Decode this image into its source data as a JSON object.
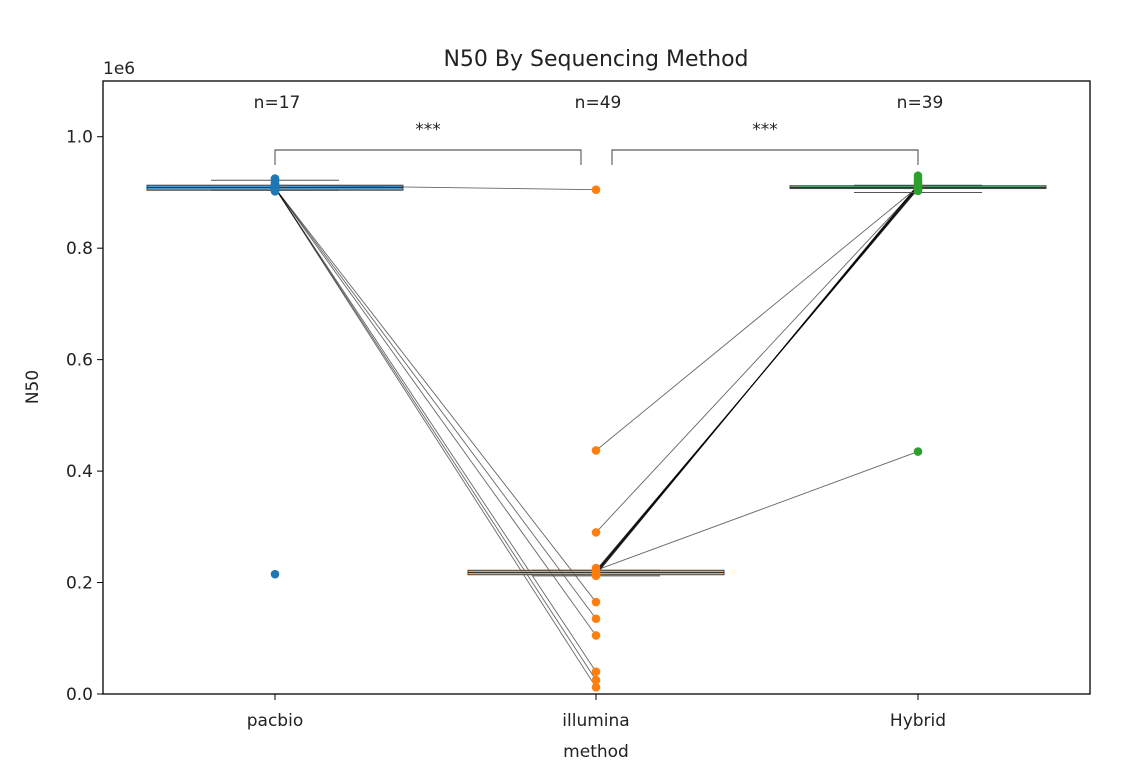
{
  "chart_data": {
    "type": "scatter",
    "title": "N50 By Sequencing Method",
    "xlabel": "method",
    "ylabel": "N50",
    "y_offset_label": "1e6",
    "categories": [
      "pacbio",
      "illumina",
      "Hybrid"
    ],
    "ylim": [
      0,
      1.1
    ],
    "yticks": [
      0.0,
      0.2,
      0.4,
      0.6,
      0.8,
      1.0
    ],
    "ytick_labels": [
      "0.0",
      "0.2",
      "0.4",
      "0.6",
      "0.8",
      "1.0"
    ],
    "grid": false,
    "colors": {
      "pacbio": "#1f77b4",
      "illumina": "#ff7f0e",
      "Hybrid": "#2ca02c"
    },
    "counts": [
      "n=17",
      "n=49",
      "n=39"
    ],
    "significance": [
      {
        "from": "pacbio",
        "to": "illumina",
        "label": "***"
      },
      {
        "from": "illumina",
        "to": "Hybrid",
        "label": "***"
      }
    ],
    "boxes": [
      {
        "category": "pacbio",
        "q1": 0.904,
        "median": 0.909,
        "q3": 0.913,
        "whisker_low": 0.904,
        "whisker_high": 0.922
      },
      {
        "category": "illumina",
        "q1": 0.214,
        "median": 0.218,
        "q3": 0.222,
        "whisker_low": 0.212,
        "whisker_high": 0.222
      },
      {
        "category": "Hybrid",
        "q1": 0.907,
        "median": 0.909,
        "q3": 0.912,
        "whisker_low": 0.9,
        "whisker_high": 0.913
      }
    ],
    "series": [
      {
        "category": "pacbio",
        "values": [
          0.925,
          0.922,
          0.918,
          0.915,
          0.913,
          0.912,
          0.911,
          0.91,
          0.909,
          0.908,
          0.907,
          0.906,
          0.905,
          0.904,
          0.903,
          0.902,
          0.215
        ]
      },
      {
        "category": "illumina",
        "values": [
          0.905,
          0.437,
          0.29,
          0.226,
          0.222,
          0.22,
          0.218,
          0.216,
          0.214,
          0.212,
          0.165,
          0.135,
          0.105,
          0.04,
          0.025,
          0.012
        ]
      },
      {
        "category": "Hybrid",
        "values": [
          0.93,
          0.925,
          0.92,
          0.917,
          0.914,
          0.912,
          0.91,
          0.909,
          0.907,
          0.905,
          0.903,
          0.435
        ]
      }
    ],
    "paired_lines": [
      {
        "from_cat": "pacbio",
        "from_y": 0.913,
        "to_cat": "illumina",
        "to_y": 0.905
      },
      {
        "from_cat": "pacbio",
        "from_y": 0.908,
        "to_cat": "illumina",
        "to_y": 0.165
      },
      {
        "from_cat": "pacbio",
        "from_y": 0.908,
        "to_cat": "illumina",
        "to_y": 0.135
      },
      {
        "from_cat": "pacbio",
        "from_y": 0.908,
        "to_cat": "illumina",
        "to_y": 0.105
      },
      {
        "from_cat": "pacbio",
        "from_y": 0.908,
        "to_cat": "illumina",
        "to_y": 0.04
      },
      {
        "from_cat": "pacbio",
        "from_y": 0.908,
        "to_cat": "illumina",
        "to_y": 0.025
      },
      {
        "from_cat": "pacbio",
        "from_y": 0.908,
        "to_cat": "illumina",
        "to_y": 0.012
      },
      {
        "from_cat": "illumina",
        "from_y": 0.437,
        "to_cat": "Hybrid",
        "to_y": 0.91
      },
      {
        "from_cat": "illumina",
        "from_y": 0.29,
        "to_cat": "Hybrid",
        "to_y": 0.91
      },
      {
        "from_cat": "illumina",
        "from_y": 0.222,
        "to_cat": "Hybrid",
        "to_y": 0.435
      },
      {
        "from_cat": "illumina",
        "from_y": 0.222,
        "to_cat": "Hybrid",
        "to_y": 0.906
      },
      {
        "from_cat": "illumina",
        "from_y": 0.221,
        "to_cat": "Hybrid",
        "to_y": 0.907
      },
      {
        "from_cat": "illumina",
        "from_y": 0.22,
        "to_cat": "Hybrid",
        "to_y": 0.908
      },
      {
        "from_cat": "illumina",
        "from_y": 0.219,
        "to_cat": "Hybrid",
        "to_y": 0.909
      },
      {
        "from_cat": "illumina",
        "from_y": 0.218,
        "to_cat": "Hybrid",
        "to_y": 0.91
      },
      {
        "from_cat": "illumina",
        "from_y": 0.217,
        "to_cat": "Hybrid",
        "to_y": 0.911
      },
      {
        "from_cat": "illumina",
        "from_y": 0.216,
        "to_cat": "Hybrid",
        "to_y": 0.912
      },
      {
        "from_cat": "illumina",
        "from_y": 0.215,
        "to_cat": "Hybrid",
        "to_y": 0.913
      },
      {
        "from_cat": "illumina",
        "from_y": 0.214,
        "to_cat": "Hybrid",
        "to_y": 0.914
      }
    ]
  }
}
